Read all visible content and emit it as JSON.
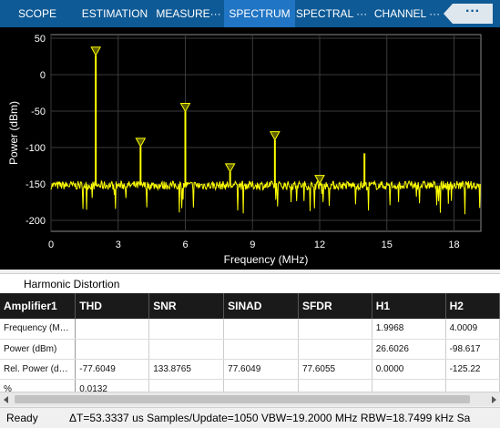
{
  "tabs": [
    {
      "label": "SCOPE"
    },
    {
      "label": "ESTIMATION"
    },
    {
      "label": "MEASURE···"
    },
    {
      "label": "SPECTRUM"
    },
    {
      "label": "SPECTRAL ···"
    },
    {
      "label": "CHANNEL ···"
    }
  ],
  "active_tab": "SPECTRUM",
  "more_button_label": "···",
  "chart_data": {
    "type": "line",
    "xlabel": "Frequency (MHz)",
    "ylabel": "Power (dBm)",
    "xlim": [
      0,
      19.2
    ],
    "ylim": [
      -215,
      55
    ],
    "xticks": [
      0,
      3,
      6,
      9,
      12,
      15,
      18
    ],
    "yticks": [
      50,
      0,
      -50,
      -100,
      -150,
      -200
    ],
    "grid": true,
    "noise_floor_dbm": -152,
    "line_color": "#ffff00",
    "peaks": [
      {
        "x": 2.0,
        "y": 26.6
      },
      {
        "x": 4.0,
        "y": -98.6
      },
      {
        "x": 6.0,
        "y": -50.6
      },
      {
        "x": 8.0,
        "y": -133.6
      },
      {
        "x": 10.0,
        "y": -89.6
      },
      {
        "x": 12.0,
        "y": -149.6
      },
      {
        "x": 14.0,
        "y": -108.0
      }
    ],
    "markers": [
      {
        "x": 2.0,
        "y": 26.6
      },
      {
        "x": 4.0,
        "y": -98.6
      },
      {
        "x": 6.0,
        "y": -50.6
      },
      {
        "x": 8.0,
        "y": -133.6
      },
      {
        "x": 10.0,
        "y": -89.6
      },
      {
        "x": 12.0,
        "y": -149.6
      }
    ]
  },
  "table": {
    "title": "Harmonic Distortion",
    "columns": [
      "Amplifier1",
      "THD",
      "SNR",
      "SINAD",
      "SFDR",
      "H1",
      "H2"
    ],
    "rows": [
      [
        "Frequency (M…",
        "",
        "",
        "",
        "",
        "1.9968",
        "4.0009"
      ],
      [
        "Power (dBm)",
        "",
        "",
        "",
        "",
        "26.6026",
        "-98.617"
      ],
      [
        "Rel. Power (d…",
        "-77.6049",
        "133.8765",
        "77.6049",
        "77.6055",
        "0.0000",
        "-125.22"
      ],
      [
        "%",
        "0.0132",
        "",
        "",
        "",
        "",
        ""
      ]
    ]
  },
  "status": {
    "ready": "Ready",
    "info": "ΔT=53.3337 us  Samples/Update=1050  VBW=19.2000 MHz  RBW=18.7499 kHz  Sa"
  }
}
